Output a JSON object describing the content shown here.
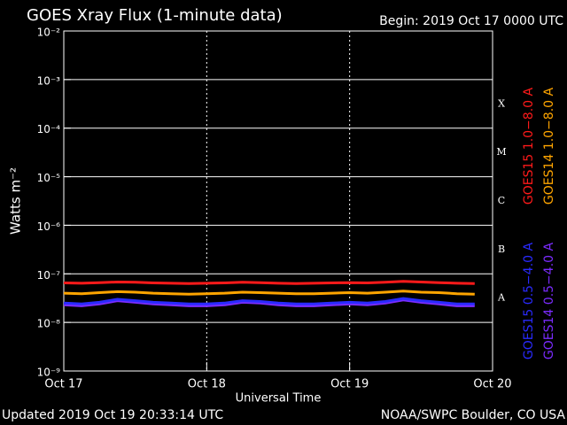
{
  "chart_data": {
    "type": "line",
    "title": "GOES Xray Flux (1-minute data)",
    "subtitle": "Begin:  2019 Oct 17 0000 UTC",
    "ylabel": "Watts m⁻²",
    "xlabel": "Universal Time",
    "footer_left": "Updated 2019 Oct 19 20:33:14 UTC",
    "footer_right": "NOAA/SWPC Boulder, CO USA",
    "log_y": true,
    "grid": true,
    "ylim": [
      1e-09,
      0.01
    ],
    "yticks": [
      {
        "value": 0.01,
        "label": "10⁻²"
      },
      {
        "value": 0.001,
        "label": "10⁻³"
      },
      {
        "value": 0.0001,
        "label": "10⁻⁴"
      },
      {
        "value": 1e-05,
        "label": "10⁻⁵"
      },
      {
        "value": 1e-06,
        "label": "10⁻⁶"
      },
      {
        "value": 1e-07,
        "label": "10⁻⁷"
      },
      {
        "value": 1e-08,
        "label": "10⁻⁸"
      },
      {
        "value": 1e-09,
        "label": "10⁻⁹"
      }
    ],
    "xlim": [
      0,
      3
    ],
    "xticks": [
      {
        "value": 0,
        "label": "Oct 17"
      },
      {
        "value": 1,
        "label": "Oct 18"
      },
      {
        "value": 2,
        "label": "Oct 19"
      },
      {
        "value": 3,
        "label": "Oct 20"
      }
    ],
    "class_labels": [
      {
        "value": 1e-08,
        "label": "A"
      },
      {
        "value": 1e-07,
        "label": "B"
      },
      {
        "value": 1e-06,
        "label": "C"
      },
      {
        "value": 1e-05,
        "label": "M"
      },
      {
        "value": 0.0001,
        "label": "X"
      }
    ],
    "x": [
      0,
      0.125,
      0.25,
      0.375,
      0.5,
      0.625,
      0.75,
      0.875,
      1,
      1.125,
      1.25,
      1.375,
      1.5,
      1.625,
      1.75,
      1.875,
      2,
      2.125,
      2.25,
      2.375,
      2.5,
      2.625,
      2.75,
      2.875
    ],
    "series": [
      {
        "name": "GOES14 0.5−4.0 A",
        "color": "#7b2cff",
        "values": [
          2.3e-08,
          2.2e-08,
          2.4e-08,
          2.8e-08,
          2.6e-08,
          2.4e-08,
          2.3e-08,
          2.2e-08,
          2.2e-08,
          2.3e-08,
          2.6e-08,
          2.5e-08,
          2.3e-08,
          2.2e-08,
          2.2e-08,
          2.3e-08,
          2.4e-08,
          2.3e-08,
          2.5e-08,
          2.9e-08,
          2.6e-08,
          2.4e-08,
          2.2e-08,
          2.2e-08
        ]
      },
      {
        "name": "GOES15 0.5−4.0 A",
        "color": "#2a2aff",
        "values": [
          2.5e-08,
          2.4e-08,
          2.6e-08,
          3e-08,
          2.8e-08,
          2.6e-08,
          2.5e-08,
          2.4e-08,
          2.4e-08,
          2.5e-08,
          2.8e-08,
          2.7e-08,
          2.5e-08,
          2.4e-08,
          2.4e-08,
          2.5e-08,
          2.6e-08,
          2.5e-08,
          2.7e-08,
          3.1e-08,
          2.8e-08,
          2.6e-08,
          2.4e-08,
          2.4e-08
        ]
      },
      {
        "name": "GOES14 1.0−8.0 A",
        "color": "#ffa500",
        "values": [
          4e-08,
          3.9e-08,
          4.1e-08,
          4.3e-08,
          4.2e-08,
          4e-08,
          3.9e-08,
          3.8e-08,
          3.9e-08,
          4e-08,
          4.2e-08,
          4.1e-08,
          4e-08,
          3.9e-08,
          3.9e-08,
          4e-08,
          4.1e-08,
          4e-08,
          4.2e-08,
          4.4e-08,
          4.2e-08,
          4.1e-08,
          3.9e-08,
          3.8e-08
        ]
      },
      {
        "name": "GOES15 1.0−8.0 A",
        "color": "#ff1a1a",
        "values": [
          6.5e-08,
          6.4e-08,
          6.6e-08,
          6.8e-08,
          6.7e-08,
          6.5e-08,
          6.4e-08,
          6.3e-08,
          6.4e-08,
          6.5e-08,
          6.7e-08,
          6.6e-08,
          6.4e-08,
          6.3e-08,
          6.4e-08,
          6.5e-08,
          6.6e-08,
          6.5e-08,
          6.7e-08,
          7e-08,
          6.8e-08,
          6.6e-08,
          6.4e-08,
          6.3e-08
        ]
      }
    ]
  }
}
